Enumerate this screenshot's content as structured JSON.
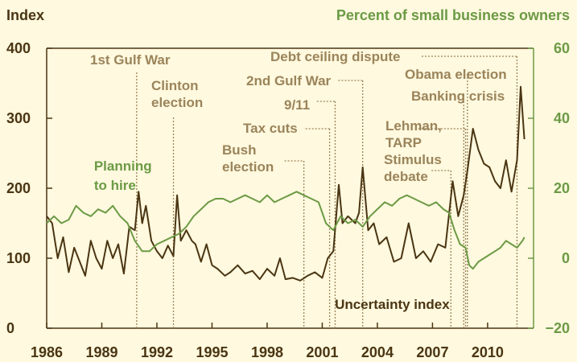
{
  "chart_data": {
    "type": "line",
    "left_axis_title": "Index",
    "right_axis_title": "Percent of small business owners",
    "x_range": [
      1986,
      2012.5
    ],
    "x_ticks": [
      1986,
      1989,
      1992,
      1995,
      1998,
      2001,
      2004,
      2007,
      2010
    ],
    "left_ylim": [
      0,
      400
    ],
    "left_ticks": [
      0,
      100,
      200,
      300,
      400
    ],
    "right_ylim": [
      -20,
      60
    ],
    "right_ticks": [
      -20,
      0,
      20,
      40,
      60
    ],
    "grid": "none",
    "colors": {
      "background": "#fff9df",
      "uncertainty": "#4a3512",
      "hiring": "#6c9a45",
      "annotation": "#9b845a",
      "hiring_axis": "#6c9a45"
    },
    "series": [
      {
        "name": "Uncertainty index",
        "axis": "left",
        "points": [
          [
            1986.0,
            160
          ],
          [
            1986.3,
            150
          ],
          [
            1986.6,
            100
          ],
          [
            1986.9,
            130
          ],
          [
            1987.2,
            80
          ],
          [
            1987.5,
            115
          ],
          [
            1987.8,
            95
          ],
          [
            1988.1,
            75
          ],
          [
            1988.4,
            125
          ],
          [
            1988.7,
            100
          ],
          [
            1989.0,
            85
          ],
          [
            1989.3,
            125
          ],
          [
            1989.6,
            100
          ],
          [
            1989.9,
            120
          ],
          [
            1990.2,
            78
          ],
          [
            1990.5,
            145
          ],
          [
            1990.8,
            140
          ],
          [
            1991.0,
            195
          ],
          [
            1991.2,
            150
          ],
          [
            1991.4,
            175
          ],
          [
            1991.7,
            125
          ],
          [
            1992.0,
            110
          ],
          [
            1992.3,
            100
          ],
          [
            1992.6,
            118
          ],
          [
            1992.9,
            103
          ],
          [
            1993.1,
            190
          ],
          [
            1993.3,
            125
          ],
          [
            1993.6,
            140
          ],
          [
            1993.9,
            125
          ],
          [
            1994.1,
            120
          ],
          [
            1994.4,
            95
          ],
          [
            1994.7,
            120
          ],
          [
            1995.0,
            90
          ],
          [
            1995.3,
            85
          ],
          [
            1995.7,
            75
          ],
          [
            1996.0,
            80
          ],
          [
            1996.4,
            90
          ],
          [
            1996.8,
            78
          ],
          [
            1997.2,
            82
          ],
          [
            1997.6,
            70
          ],
          [
            1998.0,
            85
          ],
          [
            1998.4,
            75
          ],
          [
            1998.7,
            100
          ],
          [
            1999.0,
            70
          ],
          [
            1999.4,
            72
          ],
          [
            1999.8,
            68
          ],
          [
            2000.2,
            75
          ],
          [
            2000.6,
            80
          ],
          [
            2001.0,
            72
          ],
          [
            2001.3,
            100
          ],
          [
            2001.6,
            110
          ],
          [
            2001.9,
            205
          ],
          [
            2002.1,
            150
          ],
          [
            2002.4,
            160
          ],
          [
            2002.8,
            150
          ],
          [
            2003.0,
            165
          ],
          [
            2003.2,
            230
          ],
          [
            2003.5,
            140
          ],
          [
            2003.8,
            150
          ],
          [
            2004.1,
            120
          ],
          [
            2004.5,
            130
          ],
          [
            2004.9,
            95
          ],
          [
            2005.3,
            100
          ],
          [
            2005.7,
            150
          ],
          [
            2006.1,
            100
          ],
          [
            2006.5,
            110
          ],
          [
            2006.9,
            95
          ],
          [
            2007.3,
            120
          ],
          [
            2007.7,
            115
          ],
          [
            2008.1,
            210
          ],
          [
            2008.4,
            160
          ],
          [
            2008.7,
            190
          ],
          [
            2008.9,
            225
          ],
          [
            2009.2,
            285
          ],
          [
            2009.5,
            255
          ],
          [
            2009.8,
            235
          ],
          [
            2010.1,
            230
          ],
          [
            2010.4,
            210
          ],
          [
            2010.7,
            200
          ],
          [
            2011.0,
            240
          ],
          [
            2011.3,
            195
          ],
          [
            2011.6,
            240
          ],
          [
            2011.8,
            345
          ],
          [
            2012.0,
            270
          ]
        ]
      },
      {
        "name": "Planning to hire",
        "axis": "right",
        "points": [
          [
            1986.0,
            10
          ],
          [
            1986.4,
            12
          ],
          [
            1986.8,
            10
          ],
          [
            1987.2,
            11
          ],
          [
            1987.6,
            15
          ],
          [
            1988.0,
            13
          ],
          [
            1988.4,
            12
          ],
          [
            1988.8,
            14
          ],
          [
            1989.2,
            13
          ],
          [
            1989.6,
            15
          ],
          [
            1990.0,
            12
          ],
          [
            1990.4,
            10
          ],
          [
            1990.8,
            5
          ],
          [
            1991.2,
            2
          ],
          [
            1991.6,
            2
          ],
          [
            1992.0,
            4
          ],
          [
            1992.4,
            5
          ],
          [
            1992.8,
            6
          ],
          [
            1993.2,
            7
          ],
          [
            1993.6,
            9
          ],
          [
            1994.0,
            12
          ],
          [
            1994.4,
            14
          ],
          [
            1994.8,
            16
          ],
          [
            1995.2,
            17
          ],
          [
            1995.6,
            17
          ],
          [
            1996.0,
            16
          ],
          [
            1996.4,
            17
          ],
          [
            1996.8,
            18
          ],
          [
            1997.2,
            17
          ],
          [
            1997.6,
            16
          ],
          [
            1998.0,
            18
          ],
          [
            1998.4,
            16
          ],
          [
            1998.8,
            17
          ],
          [
            1999.2,
            18
          ],
          [
            1999.6,
            19
          ],
          [
            2000.0,
            18
          ],
          [
            2000.4,
            17
          ],
          [
            2000.8,
            16
          ],
          [
            2001.2,
            10
          ],
          [
            2001.6,
            8
          ],
          [
            2002.0,
            12
          ],
          [
            2002.4,
            10
          ],
          [
            2002.8,
            11
          ],
          [
            2003.2,
            9
          ],
          [
            2003.6,
            12
          ],
          [
            2004.0,
            14
          ],
          [
            2004.4,
            16
          ],
          [
            2004.8,
            15
          ],
          [
            2005.2,
            17
          ],
          [
            2005.6,
            18
          ],
          [
            2006.0,
            17
          ],
          [
            2006.4,
            16
          ],
          [
            2006.8,
            15
          ],
          [
            2007.2,
            16
          ],
          [
            2007.6,
            14
          ],
          [
            2007.9,
            13
          ],
          [
            2008.2,
            8
          ],
          [
            2008.5,
            4
          ],
          [
            2008.8,
            3
          ],
          [
            2009.0,
            -2
          ],
          [
            2009.2,
            -3
          ],
          [
            2009.5,
            -1
          ],
          [
            2009.8,
            0
          ],
          [
            2010.1,
            1
          ],
          [
            2010.4,
            2
          ],
          [
            2010.7,
            3
          ],
          [
            2011.0,
            5
          ],
          [
            2011.3,
            4
          ],
          [
            2011.6,
            3
          ],
          [
            2011.9,
            5
          ],
          [
            2012.0,
            6
          ]
        ]
      }
    ],
    "series_labels": [
      {
        "series": 0,
        "lines": [
          "Uncertainty index"
        ],
        "anchor_x": 1997.8,
        "anchor_y": 30
      },
      {
        "series": 1,
        "lines": [
          "Planning",
          "to hire"
        ],
        "anchor_x": 1986.3,
        "anchor_y": 230
      }
    ],
    "events": [
      {
        "lines": [
          "1st Gulf War"
        ],
        "x": 1990.9
      },
      {
        "lines": [
          "Clinton",
          "election"
        ],
        "x": 1992.9
      },
      {
        "lines": [
          "Bush",
          "election"
        ],
        "x": 2000.0
      },
      {
        "lines": [
          "Tax cuts"
        ],
        "x": 2001.4
      },
      {
        "lines": [
          "9/11"
        ],
        "x": 2001.7
      },
      {
        "lines": [
          "2nd Gulf War"
        ],
        "x": 2003.2
      },
      {
        "lines": [
          "Debt ceiling dispute"
        ],
        "x": 2011.6
      },
      {
        "lines": [
          "Obama election"
        ],
        "x": 2008.9
      },
      {
        "lines": [
          "Banking crisis"
        ],
        "x": 2008.7
      },
      {
        "lines": [
          "Lehman,",
          "TARP"
        ],
        "x": 2008.8
      },
      {
        "lines": [
          "Stimulus",
          "debate"
        ],
        "x": 2008.0
      }
    ]
  }
}
